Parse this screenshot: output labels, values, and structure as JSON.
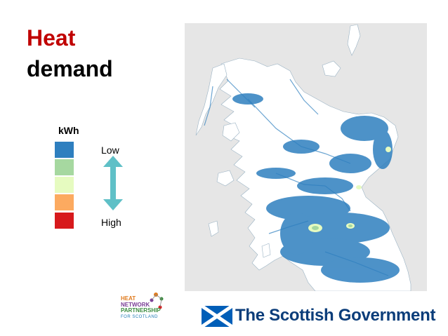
{
  "title": {
    "line1": "Heat",
    "line2": "demand"
  },
  "legend": {
    "unit": "kWh",
    "low_label": "Low",
    "high_label": "High",
    "swatches": [
      {
        "color": "#2e7fbf"
      },
      {
        "color": "#a6d8a0"
      },
      {
        "color": "#e6fbc0"
      },
      {
        "color": "#fcaa60"
      },
      {
        "color": "#d7191c"
      }
    ],
    "arrow_color": "#5fc0c7"
  },
  "map": {
    "land_color": "#ffffff",
    "sea_color": "#e6e6e6",
    "network_color": "#2e7fbf"
  },
  "logos": {
    "heat_network_partnership": {
      "line1": "HEAT",
      "line2": "NETWORK",
      "line3": "PARTNERSHIP",
      "line4": "FOR SCOTLAND"
    },
    "scottish_government": {
      "text": "The Scottish Government",
      "flag_color": "#005eb8"
    }
  }
}
